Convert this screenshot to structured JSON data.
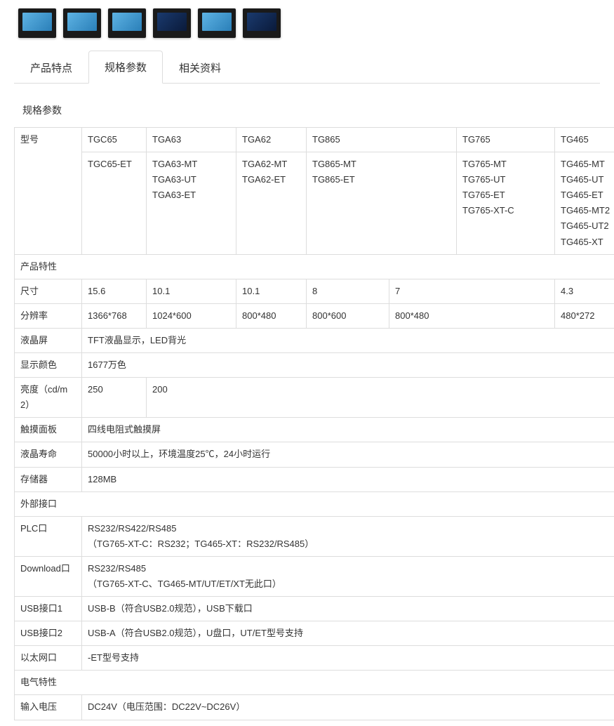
{
  "tabs": {
    "features": "产品特点",
    "specs": "规格参数",
    "docs": "相关资料"
  },
  "panel_title": "规格参数",
  "rows": {
    "model_label": "型号",
    "models_row1": [
      "TGC65",
      "TGA63",
      "TGA62",
      "TG865",
      "TG765",
      "TG465"
    ],
    "models_row2": [
      "TGC65-ET",
      "TGA63-MT\nTGA63-UT\nTGA63-ET",
      "TGA62-MT\nTGA62-ET",
      "TG865-MT\nTG865-ET",
      "TG765-MT\nTG765-UT\nTG765-ET\nTG765-XT-C",
      "TG465-MT\nTG465-UT\nTG465-ET\nTG465-MT2\nTG465-UT2\nTG465-XT"
    ],
    "section_product": "产品特性",
    "size_label": "尺寸",
    "size": [
      "15.6",
      "10.1",
      "10.1",
      "8",
      "7",
      "4.3"
    ],
    "res_label": "分辨率",
    "res": [
      "1366*768",
      "1024*600",
      "800*480",
      "800*600",
      "800*480",
      "480*272"
    ],
    "lcd_label": "液晶屏",
    "lcd": "TFT液晶显示，LED背光",
    "color_label": "显示颜色",
    "color": "1677万色",
    "bright_label": "亮度（cd/m2）",
    "bright": [
      "250",
      "200"
    ],
    "touch_label": "触摸面板",
    "touch": "四线电阻式触摸屏",
    "life_label": "液晶寿命",
    "life": "50000小时以上，环境温度25℃，24小时运行",
    "mem_label": "存储器",
    "mem": "128MB",
    "section_io": "外部接口",
    "plc_label": "PLC口",
    "plc": "RS232/RS422/RS485\n（TG765-XT-C：RS232；TG465-XT：RS232/RS485）",
    "dl_label": "Download口",
    "dl": "RS232/RS485\n（TG765-XT-C、TG465-MT/UT/ET/XT无此口）",
    "usb1_label": "USB接口1",
    "usb1": "USB-B（符合USB2.0规范），USB下载口",
    "usb2_label": "USB接口2",
    "usb2": "USB-A（符合USB2.0规范），U盘口，UT/ET型号支持",
    "eth_label": "以太网口",
    "eth": "-ET型号支持",
    "section_elec": "电气特性",
    "vin_label": "输入电压",
    "vin": "DC24V（电压范围：DC22V~DC26V）"
  }
}
